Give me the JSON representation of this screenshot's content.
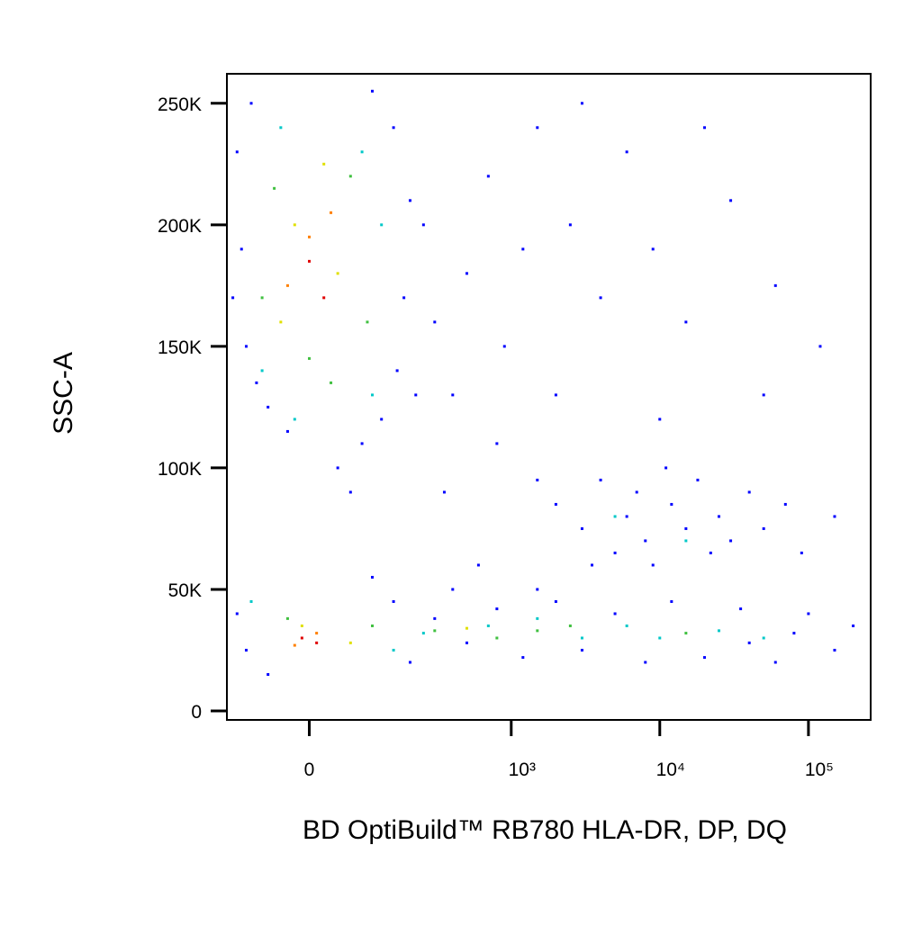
{
  "chart_data": {
    "type": "scatter",
    "x_label": "BD OptiBuild™ RB780 HLA-DR, DP, DQ",
    "y_label": "SSC-A",
    "xscale": "biexponential",
    "xlim": [
      -145,
      262144
    ],
    "xticks": [
      0,
      {
        "value": 1000,
        "label": "10³"
      },
      {
        "value": 10000,
        "label": "10⁴"
      },
      {
        "value": 100000,
        "label": "10⁵"
      }
    ],
    "ylim": [
      -3700,
      262144
    ],
    "yticks": [
      0,
      {
        "value": 50000,
        "label": "50K"
      },
      {
        "value": 100000,
        "label": "100K"
      },
      {
        "value": 150000,
        "label": "150K"
      },
      {
        "value": 200000,
        "label": "200K"
      },
      {
        "value": 250000,
        "label": "250K"
      }
    ],
    "series": [
      {
        "color": "#0000ff",
        "x": [
          -120,
          -90,
          150,
          200,
          -110,
          180,
          -100,
          160,
          -60,
          120,
          80,
          -30,
          250,
          300,
          220,
          -130,
          100,
          -80,
          40,
          60,
          500,
          700,
          900,
          1500,
          2500,
          4000,
          6000,
          9000,
          15000,
          30000,
          60000,
          120000,
          400,
          800,
          1200,
          3000,
          20000,
          50000,
          350,
          600,
          2000,
          10000,
          2000,
          3000,
          4000,
          5000,
          6000,
          7000,
          8000,
          9000,
          12000,
          15000,
          18000,
          22000,
          25000,
          30000,
          40000,
          50000,
          70000,
          90000,
          3500,
          11000,
          150000,
          1500,
          -100,
          -120,
          150,
          200,
          300,
          500,
          800,
          1200,
          2000,
          3000,
          5000,
          8000,
          12000,
          20000,
          35000,
          60000,
          100000,
          150000,
          200000,
          -60,
          100,
          400,
          1500,
          40000,
          80000
        ],
        "values": [
          230000,
          250000,
          240000,
          210000,
          190000,
          170000,
          150000,
          140000,
          125000,
          120000,
          110000,
          115000,
          200000,
          160000,
          130000,
          170000,
          255000,
          135000,
          100000,
          90000,
          180000,
          220000,
          150000,
          240000,
          200000,
          170000,
          230000,
          190000,
          160000,
          210000,
          175000,
          150000,
          130000,
          110000,
          190000,
          250000,
          240000,
          130000,
          90000,
          60000,
          130000,
          120000,
          85000,
          75000,
          95000,
          65000,
          80000,
          90000,
          70000,
          60000,
          85000,
          75000,
          95000,
          65000,
          80000,
          70000,
          90000,
          75000,
          85000,
          65000,
          60000,
          100000,
          80000,
          95000,
          25000,
          40000,
          45000,
          20000,
          38000,
          28000,
          42000,
          22000,
          45000,
          25000,
          40000,
          20000,
          45000,
          22000,
          42000,
          20000,
          40000,
          25000,
          35000,
          15000,
          55000,
          50000,
          50000,
          28000,
          32000
        ]
      },
      {
        "color": "#00c8c8",
        "x": [
          -40,
          80,
          -70,
          100,
          -20,
          120,
          -90,
          150,
          250,
          700,
          1500,
          3000,
          6000,
          10000,
          25000,
          50000,
          5000,
          15000
        ],
        "values": [
          240000,
          230000,
          140000,
          130000,
          120000,
          200000,
          45000,
          25000,
          32000,
          35000,
          38000,
          30000,
          35000,
          30000,
          33000,
          30000,
          80000,
          70000
        ]
      },
      {
        "color": "#40c040",
        "x": [
          -50,
          60,
          -70,
          90,
          0,
          30,
          -30,
          100,
          300,
          800,
          1500,
          2500,
          15000
        ],
        "values": [
          215000,
          220000,
          170000,
          160000,
          145000,
          135000,
          38000,
          35000,
          33000,
          30000,
          33000,
          35000,
          32000
        ]
      },
      {
        "color": "#e0e000",
        "x": [
          -20,
          40,
          -40,
          20,
          -10,
          60,
          500
        ],
        "values": [
          200000,
          180000,
          160000,
          225000,
          35000,
          28000,
          34000
        ]
      },
      {
        "color": "#ff8000",
        "x": [
          0,
          -30,
          30,
          10,
          -20
        ],
        "values": [
          195000,
          175000,
          205000,
          32000,
          27000
        ]
      },
      {
        "color": "#e00000",
        "x": [
          0,
          20,
          -10,
          10
        ],
        "values": [
          185000,
          170000,
          30000,
          28000
        ]
      }
    ]
  }
}
